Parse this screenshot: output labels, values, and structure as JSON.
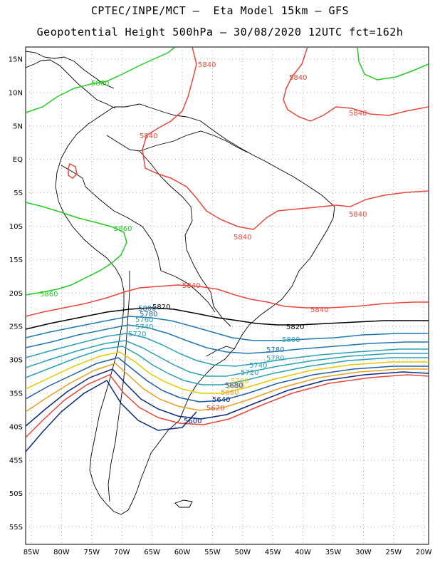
{
  "header": {
    "line1": "CPTEC/INPE/MCT –  Eta Model 15km – GFS",
    "line2": "Geopotential Height 500hPa – 30/08/2020 12UTC fct=162h"
  },
  "axes": {
    "lat_ticks": [
      "15N",
      "10N",
      "5N",
      "EQ",
      "5S",
      "10S",
      "15S",
      "20S",
      "25S",
      "30S",
      "35S",
      "40S",
      "45S",
      "50S",
      "55S"
    ],
    "lon_ticks": [
      "85W",
      "80W",
      "75W",
      "70W",
      "65W",
      "60W",
      "55W",
      "50W",
      "45W",
      "40W",
      "35W",
      "30W",
      "25W",
      "20W"
    ],
    "grid": "dotted"
  },
  "contours": {
    "labels": [
      {
        "text": "5860",
        "color": "#22cc22"
      },
      {
        "text": "5860",
        "color": "#22cc22"
      },
      {
        "text": "5860",
        "color": "#22cc22"
      },
      {
        "text": "5840",
        "color": "#e8473a"
      },
      {
        "text": "5840",
        "color": "#e8473a"
      },
      {
        "text": "5840",
        "color": "#e8473a"
      },
      {
        "text": "5840",
        "color": "#e8473a"
      },
      {
        "text": "5840",
        "color": "#e8473a"
      },
      {
        "text": "5840",
        "color": "#e8473a"
      },
      {
        "text": "5840",
        "color": "#e8473a"
      },
      {
        "text": "5840",
        "color": "#e8473a"
      },
      {
        "text": "5820",
        "color": "#000000"
      },
      {
        "text": "5820",
        "color": "#000000"
      },
      {
        "text": "5800",
        "color": "#1f78b4"
      },
      {
        "text": "5800",
        "color": "#2a9fb5"
      },
      {
        "text": "5780",
        "color": "#1f5fa8"
      },
      {
        "text": "5780",
        "color": "#1f78b4"
      },
      {
        "text": "5780",
        "color": "#2a9fb5"
      },
      {
        "text": "5760",
        "color": "#2a9fb5"
      },
      {
        "text": "5740",
        "color": "#2a9fb5"
      },
      {
        "text": "5740",
        "color": "#2a9fb5"
      },
      {
        "text": "5720",
        "color": "#2a9fb5"
      },
      {
        "text": "5720",
        "color": "#2a9fb5"
      },
      {
        "text": "5700",
        "color": "#e8c800"
      },
      {
        "text": "5680",
        "color": "#e8a020"
      },
      {
        "text": "5660",
        "color": "#e8a020"
      },
      {
        "text": "5640",
        "color": "#0a2a80"
      },
      {
        "text": "5620",
        "color": "#e8473a"
      },
      {
        "text": "5600",
        "color": "#0a2a80"
      },
      {
        "text": "5680",
        "color": "#1f5fa8"
      }
    ]
  }
}
